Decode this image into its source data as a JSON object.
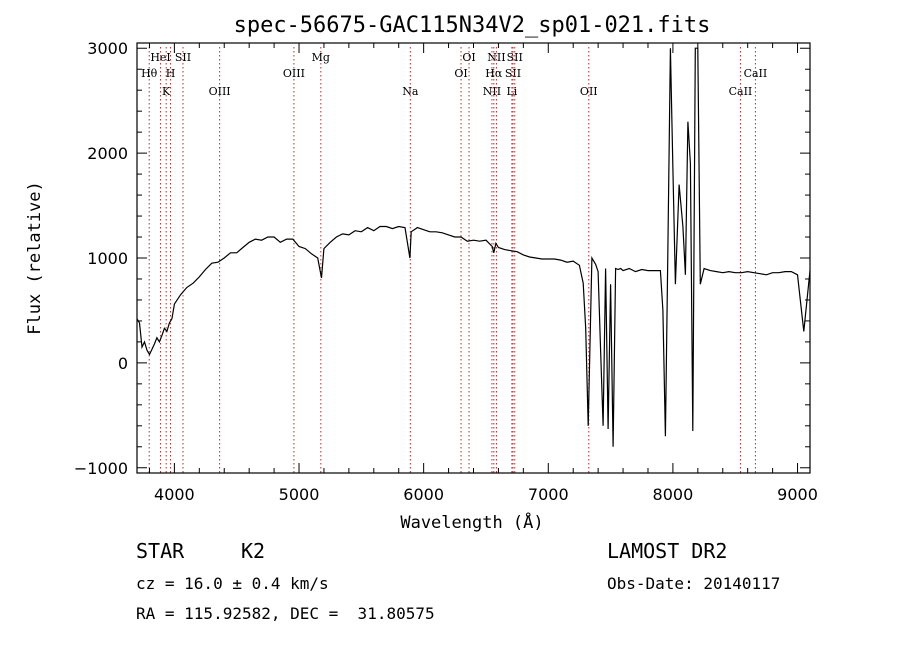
{
  "chart_data": {
    "type": "line",
    "title": "spec-56675-GAC115N34V2_sp01-021.fits",
    "xlabel": "Wavelength (Å)",
    "ylabel": "Flux (relative)",
    "xlim": [
      3700,
      9100
    ],
    "ylim": [
      -1050,
      3050
    ],
    "xticks": [
      4000,
      5000,
      6000,
      7000,
      8000,
      9000
    ],
    "yticks": [
      -1000,
      0,
      1000,
      2000,
      3000
    ],
    "grid": false,
    "line_marks": [
      {
        "label": "Hθ",
        "x": 3798,
        "row": 2
      },
      {
        "label": "HeI",
        "x": 3889,
        "row": 1
      },
      {
        "label": "K",
        "x": 3934,
        "row": 3
      },
      {
        "label": "H",
        "x": 3969,
        "row": 2
      },
      {
        "label": "SII",
        "x": 4069,
        "row": 1
      },
      {
        "label": "OIII",
        "x": 4363,
        "row": 3
      },
      {
        "label": "OIII",
        "x": 4959,
        "row": 2
      },
      {
        "label": "Mg",
        "x": 5175,
        "row": 1
      },
      {
        "label": "Na",
        "x": 5893,
        "row": 3
      },
      {
        "label": "OI",
        "x": 6300,
        "row": 2
      },
      {
        "label": "OI",
        "x": 6364,
        "row": 1
      },
      {
        "label": "NII",
        "x": 6548,
        "row": 3
      },
      {
        "label": "NII",
        "x": 6584,
        "row": 1
      },
      {
        "label": "Hα",
        "x": 6563,
        "row": 2
      },
      {
        "label": "SII",
        "x": 6717,
        "row": 2
      },
      {
        "label": "SII",
        "x": 6731,
        "row": 1
      },
      {
        "label": "Li",
        "x": 6708,
        "row": 3
      },
      {
        "label": "OII",
        "x": 7325,
        "row": 3
      },
      {
        "label": "CaII",
        "x": 8542,
        "row": 3
      },
      {
        "label": "CaII",
        "x": 8662,
        "row": 2
      }
    ],
    "series": [
      {
        "x": [
          3700,
          3720,
          3740,
          3760,
          3780,
          3800,
          3820,
          3840,
          3860,
          3880,
          3900,
          3920,
          3940,
          3960,
          3980,
          4000,
          4050,
          4100,
          4150,
          4200,
          4250,
          4300,
          4350,
          4400,
          4450,
          4500,
          4550,
          4600,
          4650,
          4700,
          4750,
          4800,
          4850,
          4900,
          4950,
          5000,
          5050,
          5100,
          5150,
          5180,
          5200,
          5250,
          5300,
          5350,
          5400,
          5450,
          5500,
          5550,
          5600,
          5650,
          5700,
          5750,
          5800,
          5850,
          5890,
          5900,
          5950,
          6000,
          6050,
          6100,
          6150,
          6200,
          6250,
          6300,
          6350,
          6400,
          6450,
          6500,
          6550,
          6563,
          6580,
          6600,
          6650,
          6700,
          6750,
          6800,
          6850,
          6900,
          6950,
          7000,
          7050,
          7100,
          7150,
          7200,
          7250,
          7280,
          7300,
          7320,
          7350,
          7380,
          7400,
          7420,
          7440,
          7460,
          7480,
          7500,
          7520,
          7540,
          7560,
          7580,
          7600,
          7650,
          7700,
          7750,
          7800,
          7850,
          7900,
          7920,
          7940,
          7960,
          7980,
          8000,
          8020,
          8050,
          8080,
          8100,
          8120,
          8140,
          8160,
          8180,
          8200,
          8220,
          8250,
          8300,
          8350,
          8400,
          8450,
          8500,
          8550,
          8600,
          8650,
          8700,
          8750,
          8800,
          8850,
          8900,
          8950,
          9000,
          9050,
          9100
        ],
        "y": [
          420,
          380,
          150,
          200,
          120,
          80,
          130,
          180,
          240,
          200,
          260,
          330,
          300,
          380,
          420,
          560,
          650,
          720,
          760,
          820,
          890,
          950,
          960,
          1000,
          1050,
          1050,
          1100,
          1150,
          1180,
          1170,
          1200,
          1200,
          1150,
          1180,
          1180,
          1110,
          1090,
          1040,
          1000,
          810,
          1090,
          1150,
          1200,
          1230,
          1220,
          1260,
          1250,
          1290,
          1260,
          1300,
          1300,
          1280,
          1300,
          1290,
          1000,
          1250,
          1290,
          1270,
          1250,
          1250,
          1240,
          1220,
          1200,
          1200,
          1160,
          1170,
          1160,
          1170,
          1110,
          1050,
          1140,
          1100,
          1080,
          1070,
          1060,
          1030,
          1010,
          1000,
          990,
          990,
          990,
          980,
          960,
          970,
          930,
          760,
          330,
          -600,
          1000,
          940,
          870,
          120,
          -600,
          900,
          -630,
          750,
          -800,
          900,
          890,
          900,
          880,
          900,
          870,
          890,
          880,
          880,
          880,
          500,
          -700,
          1100,
          3000,
          1850,
          750,
          1700,
          1300,
          840,
          2300,
          1900,
          -650,
          3000,
          3000,
          750,
          900,
          880,
          870,
          860,
          870,
          860,
          860,
          870,
          860,
          850,
          840,
          860,
          860,
          870,
          870,
          840,
          300,
          880
        ]
      }
    ]
  },
  "info": {
    "object_class": "STAR",
    "subclass": "K2",
    "survey": "LAMOST DR2",
    "cz": "cz = 16.0 ± 0.4 km/s",
    "obs_date": "Obs-Date: 20140117",
    "coords": "RA = 115.92582, DEC =  31.80575"
  }
}
